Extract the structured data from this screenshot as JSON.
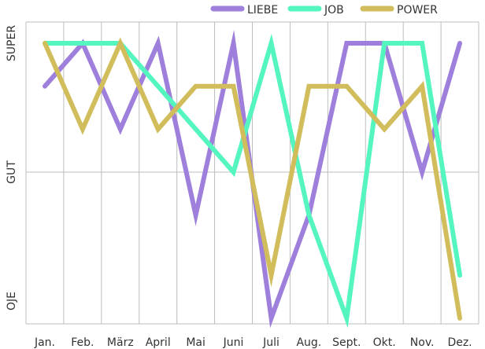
{
  "chart_data": {
    "type": "line",
    "categories": [
      "Jan.",
      "Feb.",
      "März",
      "April",
      "Mai",
      "Juni",
      "Juli",
      "Aug.",
      "Sept.",
      "Okt.",
      "Nov.",
      "Dez."
    ],
    "y_levels": [
      "OJE",
      "GUT",
      "SUPER"
    ],
    "ylim": [
      0,
      3
    ],
    "grid": true,
    "legend_position": "top-right",
    "series": [
      {
        "name": "LIEBE",
        "color": "#9e7fdb",
        "values": [
          2.5,
          3.0,
          2.0,
          3.0,
          1.0,
          3.0,
          -0.2,
          1.0,
          3.0,
          3.0,
          1.5,
          3.0
        ]
      },
      {
        "name": "JOB",
        "color": "#55f5c0",
        "values": [
          3.0,
          3.0,
          3.0,
          2.5,
          2.0,
          1.5,
          3.0,
          1.0,
          -0.2,
          3.0,
          3.0,
          0.3
        ]
      },
      {
        "name": "POWER",
        "color": "#d1bd5b",
        "values": [
          3.0,
          2.0,
          3.0,
          2.0,
          2.5,
          2.5,
          0.3,
          2.5,
          2.5,
          2.0,
          2.5,
          -0.2
        ]
      }
    ]
  }
}
